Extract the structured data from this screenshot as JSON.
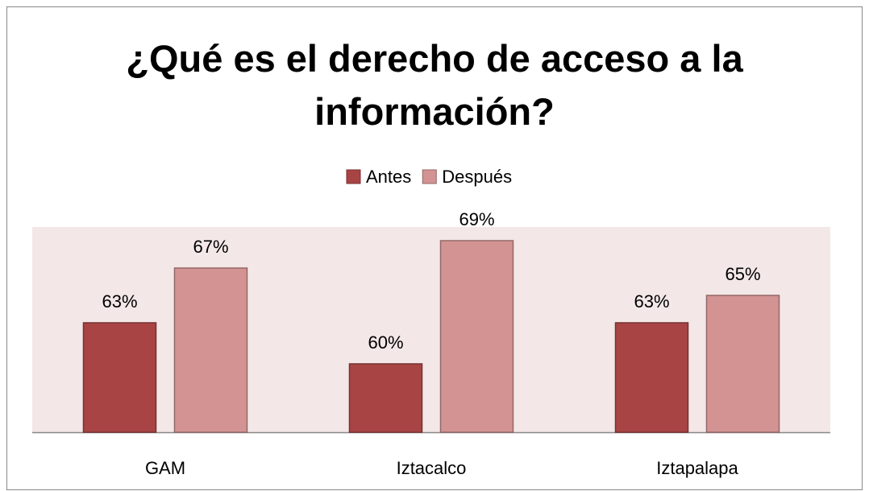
{
  "chart_data": {
    "type": "bar",
    "title": "¿Qué es el derecho de acceso a la información?",
    "categories": [
      "GAM",
      "Iztacalco",
      "Iztapalapa"
    ],
    "series": [
      {
        "name": "Antes",
        "color": "#a94444",
        "values": [
          63,
          60,
          63
        ],
        "value_labels": [
          "63%",
          "60%",
          "63%"
        ]
      },
      {
        "name": "Después",
        "color": "#d49393",
        "values": [
          67,
          69,
          65
        ],
        "value_labels": [
          "67%",
          "69%",
          "65%"
        ]
      }
    ],
    "ylim": [
      55,
      70
    ],
    "legend": "top"
  }
}
